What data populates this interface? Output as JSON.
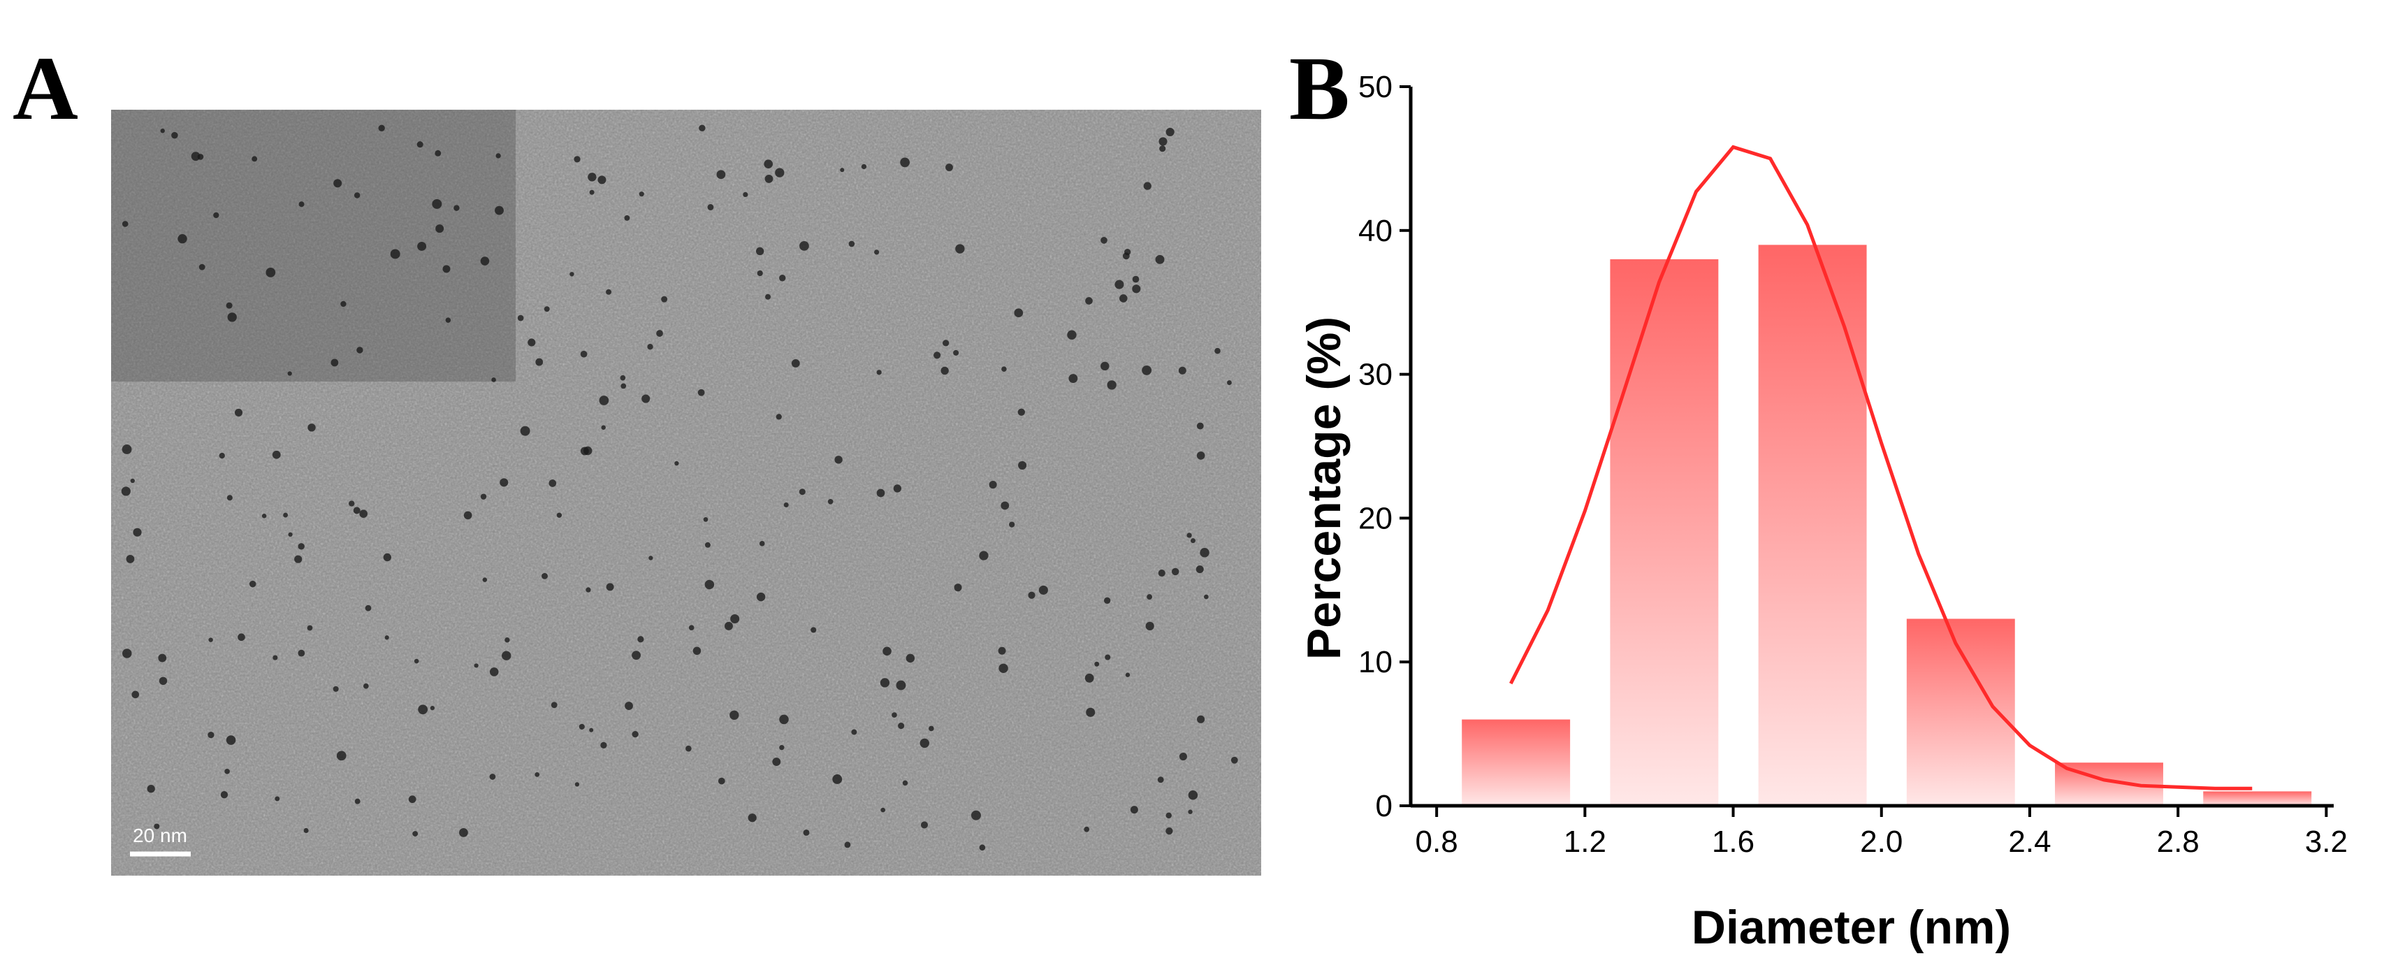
{
  "panel_a": {
    "label": "A",
    "scale_bar": "20 nm"
  },
  "chart_data": {
    "type": "histogram",
    "panel_label": "B",
    "x_label": "Diameter (nm)",
    "y_label": "Percentage (%)",
    "bins": [
      0.8,
      1.2,
      1.6,
      2.0,
      2.4,
      2.8,
      3.2
    ],
    "values": [
      6,
      38,
      39,
      13,
      3,
      1
    ],
    "color": "#ff6666",
    "curve": {
      "x": [
        1.0,
        1.1,
        1.2,
        1.3,
        1.4,
        1.5,
        1.6,
        1.7,
        1.8,
        1.9,
        2.0,
        2.1,
        2.2,
        2.3,
        2.4,
        2.5,
        2.6,
        2.7,
        2.8,
        2.9,
        3.0
      ],
      "values": [
        8.5,
        13.6,
        20.5,
        28.4,
        36.4,
        42.7,
        45.8,
        45.0,
        40.4,
        33.3,
        25.2,
        17.5,
        11.3,
        6.9,
        4.2,
        2.6,
        1.8,
        1.4,
        1.3,
        1.2,
        1.2
      ],
      "color": "#ff2a2a"
    },
    "xlim": [
      0.73,
      3.22
    ],
    "ylim": [
      0,
      50
    ],
    "xticks": [
      {
        "value": 0.8,
        "label": "0.8"
      },
      {
        "value": 1.2,
        "label": "1.2"
      },
      {
        "value": 1.6,
        "label": "1.6"
      },
      {
        "value": 2.0,
        "label": "2.0"
      },
      {
        "value": 2.4,
        "label": "2.4"
      },
      {
        "value": 2.8,
        "label": "2.8"
      },
      {
        "value": 3.2,
        "label": "3.2"
      }
    ],
    "yticks": [
      0,
      10,
      20,
      30,
      40,
      50
    ]
  }
}
